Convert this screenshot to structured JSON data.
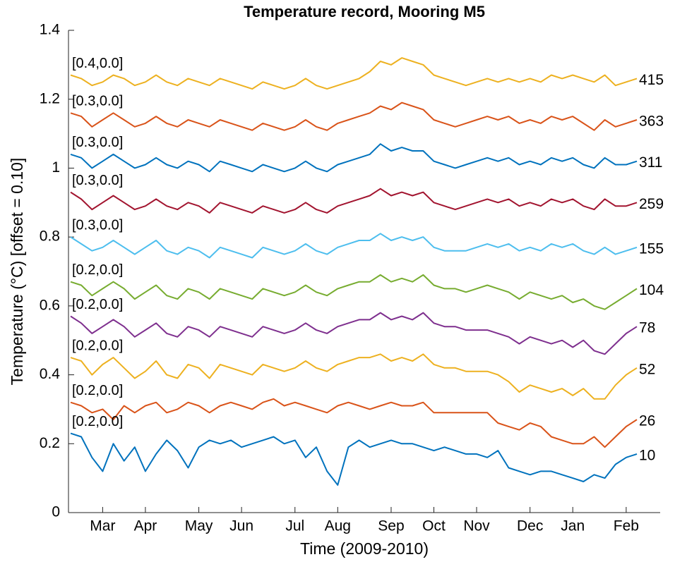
{
  "chart_data": {
    "type": "line",
    "title": "Temperature record, Mooring M5",
    "x_label": "Time (2009-2010)",
    "y_label": "Temperature (°C) [offset = 0.10]",
    "categories": [
      null,
      null,
      null,
      "Mar",
      null,
      null,
      null,
      "Apr",
      null,
      null,
      null,
      null,
      "May",
      null,
      null,
      null,
      "Jun",
      null,
      null,
      null,
      null,
      "Jul",
      null,
      null,
      null,
      "Aug",
      null,
      null,
      null,
      null,
      "Sep",
      null,
      null,
      null,
      "Oct",
      null,
      null,
      null,
      "Nov",
      null,
      null,
      null,
      null,
      "Dec",
      null,
      null,
      null,
      "Jan",
      null,
      null,
      null,
      null,
      "Feb",
      null
    ],
    "ylim": [
      0,
      1.4
    ],
    "yticks": [
      0,
      0.2,
      0.4,
      0.6,
      0.8,
      1,
      1.2,
      1.4
    ],
    "grid": false,
    "series": [
      {
        "name": "415",
        "annotation": "[0.4,0.0]",
        "color": "#EDB120",
        "values": [
          1.27,
          1.26,
          1.24,
          1.25,
          1.27,
          1.26,
          1.24,
          1.25,
          1.27,
          1.25,
          1.24,
          1.26,
          1.25,
          1.24,
          1.26,
          1.25,
          1.24,
          1.23,
          1.25,
          1.24,
          1.23,
          1.24,
          1.26,
          1.24,
          1.23,
          1.24,
          1.25,
          1.26,
          1.28,
          1.31,
          1.3,
          1.32,
          1.31,
          1.3,
          1.27,
          1.26,
          1.25,
          1.24,
          1.25,
          1.26,
          1.25,
          1.26,
          1.25,
          1.26,
          1.25,
          1.27,
          1.26,
          1.27,
          1.26,
          1.25,
          1.27,
          1.24,
          1.25,
          1.26
        ]
      },
      {
        "name": "363",
        "annotation": "[0.3,0.0]",
        "color": "#D95319",
        "values": [
          1.16,
          1.15,
          1.12,
          1.14,
          1.16,
          1.14,
          1.12,
          1.13,
          1.15,
          1.13,
          1.12,
          1.14,
          1.13,
          1.12,
          1.14,
          1.13,
          1.12,
          1.11,
          1.13,
          1.12,
          1.11,
          1.12,
          1.14,
          1.12,
          1.11,
          1.13,
          1.14,
          1.15,
          1.16,
          1.18,
          1.17,
          1.19,
          1.18,
          1.17,
          1.14,
          1.13,
          1.12,
          1.13,
          1.14,
          1.15,
          1.14,
          1.15,
          1.13,
          1.14,
          1.13,
          1.15,
          1.14,
          1.15,
          1.13,
          1.11,
          1.14,
          1.12,
          1.13,
          1.14
        ]
      },
      {
        "name": "311",
        "annotation": "[0.3,0.0]",
        "color": "#0072BD",
        "values": [
          1.04,
          1.03,
          1.0,
          1.02,
          1.04,
          1.02,
          1.0,
          1.01,
          1.03,
          1.01,
          1.0,
          1.02,
          1.01,
          0.99,
          1.02,
          1.01,
          1.0,
          0.99,
          1.01,
          1.0,
          0.99,
          1.0,
          1.02,
          1.0,
          0.99,
          1.01,
          1.02,
          1.03,
          1.04,
          1.07,
          1.05,
          1.06,
          1.05,
          1.05,
          1.02,
          1.01,
          1.0,
          1.01,
          1.02,
          1.03,
          1.02,
          1.03,
          1.01,
          1.02,
          1.01,
          1.03,
          1.02,
          1.03,
          1.01,
          1.0,
          1.03,
          1.01,
          1.01,
          1.02
        ]
      },
      {
        "name": "259",
        "annotation": "[0.3,0.0]",
        "color": "#A2142F",
        "values": [
          0.93,
          0.91,
          0.88,
          0.9,
          0.92,
          0.9,
          0.88,
          0.89,
          0.91,
          0.89,
          0.88,
          0.9,
          0.89,
          0.87,
          0.9,
          0.89,
          0.88,
          0.87,
          0.89,
          0.88,
          0.87,
          0.88,
          0.9,
          0.88,
          0.87,
          0.89,
          0.9,
          0.91,
          0.92,
          0.94,
          0.92,
          0.93,
          0.92,
          0.93,
          0.9,
          0.89,
          0.88,
          0.89,
          0.9,
          0.91,
          0.9,
          0.91,
          0.89,
          0.9,
          0.89,
          0.91,
          0.9,
          0.91,
          0.89,
          0.88,
          0.91,
          0.89,
          0.89,
          0.9
        ]
      },
      {
        "name": "155",
        "annotation": "[0.3,0.0]",
        "color": "#4DBEEE",
        "values": [
          0.8,
          0.78,
          0.76,
          0.77,
          0.79,
          0.77,
          0.75,
          0.77,
          0.79,
          0.76,
          0.75,
          0.77,
          0.76,
          0.74,
          0.77,
          0.76,
          0.75,
          0.74,
          0.77,
          0.76,
          0.75,
          0.76,
          0.78,
          0.76,
          0.75,
          0.77,
          0.78,
          0.79,
          0.79,
          0.81,
          0.79,
          0.8,
          0.79,
          0.8,
          0.77,
          0.76,
          0.76,
          0.76,
          0.77,
          0.78,
          0.77,
          0.78,
          0.76,
          0.77,
          0.76,
          0.78,
          0.77,
          0.78,
          0.76,
          0.75,
          0.77,
          0.75,
          0.76,
          0.77
        ]
      },
      {
        "name": "104",
        "annotation": "[0.2,0.0]",
        "color": "#77AC30",
        "values": [
          0.67,
          0.66,
          0.63,
          0.65,
          0.67,
          0.65,
          0.62,
          0.64,
          0.66,
          0.63,
          0.62,
          0.65,
          0.64,
          0.62,
          0.65,
          0.64,
          0.63,
          0.62,
          0.65,
          0.64,
          0.63,
          0.64,
          0.66,
          0.64,
          0.63,
          0.65,
          0.66,
          0.67,
          0.67,
          0.69,
          0.67,
          0.68,
          0.67,
          0.69,
          0.66,
          0.65,
          0.65,
          0.64,
          0.65,
          0.66,
          0.65,
          0.64,
          0.62,
          0.64,
          0.63,
          0.62,
          0.63,
          0.61,
          0.62,
          0.6,
          0.59,
          0.61,
          0.63,
          0.65
        ]
      },
      {
        "name": "78",
        "annotation": "[0.2,0.0]",
        "color": "#7E2F8E",
        "values": [
          0.57,
          0.55,
          0.52,
          0.54,
          0.56,
          0.54,
          0.51,
          0.53,
          0.55,
          0.52,
          0.51,
          0.54,
          0.53,
          0.51,
          0.54,
          0.53,
          0.52,
          0.51,
          0.54,
          0.53,
          0.52,
          0.53,
          0.55,
          0.53,
          0.52,
          0.54,
          0.55,
          0.56,
          0.56,
          0.58,
          0.56,
          0.57,
          0.56,
          0.58,
          0.55,
          0.54,
          0.54,
          0.53,
          0.53,
          0.53,
          0.52,
          0.51,
          0.49,
          0.51,
          0.5,
          0.49,
          0.5,
          0.48,
          0.5,
          0.47,
          0.46,
          0.49,
          0.52,
          0.54
        ]
      },
      {
        "name": "52",
        "annotation": "[0.2,0.0]",
        "color": "#EDB120",
        "values": [
          0.45,
          0.44,
          0.4,
          0.43,
          0.45,
          0.42,
          0.39,
          0.41,
          0.44,
          0.4,
          0.39,
          0.43,
          0.42,
          0.39,
          0.43,
          0.42,
          0.41,
          0.4,
          0.43,
          0.42,
          0.41,
          0.42,
          0.44,
          0.42,
          0.41,
          0.43,
          0.44,
          0.45,
          0.45,
          0.46,
          0.44,
          0.45,
          0.44,
          0.46,
          0.43,
          0.42,
          0.42,
          0.41,
          0.41,
          0.41,
          0.4,
          0.38,
          0.35,
          0.37,
          0.36,
          0.35,
          0.36,
          0.34,
          0.36,
          0.33,
          0.33,
          0.37,
          0.4,
          0.42
        ]
      },
      {
        "name": "26",
        "annotation": "[0.2,0.0]",
        "color": "#D95319",
        "values": [
          0.32,
          0.31,
          0.29,
          0.3,
          0.27,
          0.31,
          0.29,
          0.31,
          0.32,
          0.29,
          0.3,
          0.32,
          0.31,
          0.29,
          0.31,
          0.32,
          0.31,
          0.3,
          0.32,
          0.33,
          0.31,
          0.32,
          0.31,
          0.3,
          0.29,
          0.31,
          0.32,
          0.31,
          0.3,
          0.31,
          0.32,
          0.31,
          0.31,
          0.32,
          0.29,
          0.29,
          0.29,
          0.29,
          0.29,
          0.29,
          0.26,
          0.25,
          0.24,
          0.26,
          0.25,
          0.22,
          0.21,
          0.2,
          0.2,
          0.22,
          0.19,
          0.22,
          0.25,
          0.27
        ]
      },
      {
        "name": "10",
        "annotation": "[0.2,0.0]",
        "color": "#0072BD",
        "values": [
          0.23,
          0.22,
          0.16,
          0.12,
          0.2,
          0.15,
          0.19,
          0.12,
          0.17,
          0.21,
          0.18,
          0.13,
          0.19,
          0.21,
          0.2,
          0.21,
          0.19,
          0.2,
          0.21,
          0.22,
          0.2,
          0.21,
          0.16,
          0.19,
          0.12,
          0.08,
          0.19,
          0.21,
          0.19,
          0.2,
          0.21,
          0.2,
          0.2,
          0.19,
          0.18,
          0.19,
          0.18,
          0.17,
          0.17,
          0.16,
          0.18,
          0.13,
          0.12,
          0.11,
          0.12,
          0.12,
          0.11,
          0.1,
          0.09,
          0.11,
          0.1,
          0.14,
          0.16,
          0.17
        ]
      }
    ]
  }
}
